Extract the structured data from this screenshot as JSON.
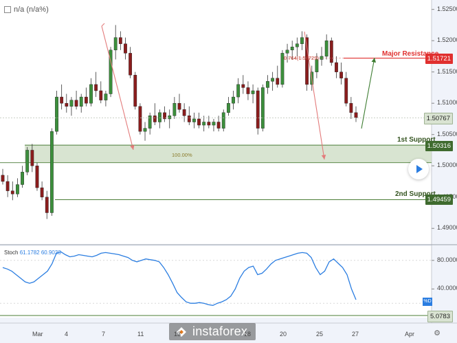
{
  "header": {
    "symbol": "n/a (n/a%)"
  },
  "chart_data": {
    "type": "candlestick",
    "price_axis": {
      "ticks": [
        "1.52500",
        "1.52000",
        "1.51500",
        "1.51000",
        "1.50500",
        "1.50000",
        "1.49500",
        "1.49000"
      ],
      "tick_values": [
        1.525,
        1.52,
        1.515,
        1.51,
        1.505,
        1.5,
        1.495,
        1.49
      ],
      "ylim": [
        1.4875,
        1.5265
      ]
    },
    "x_axis": {
      "ticks": [
        "Mar",
        "4",
        "7",
        "11",
        "13",
        "18",
        "20",
        "25",
        "27",
        "Apr"
      ]
    },
    "levels": [
      {
        "label": "Major Resistance",
        "value": 1.51721,
        "price_text": "1.51721",
        "color": "#e0302f"
      },
      {
        "label": "1st Support",
        "value": 1.50316,
        "price_text": "1.50316",
        "color": "#4a7c36"
      },
      {
        "label": "2nd Support",
        "value": 1.49459,
        "price_text": "1.49459",
        "color": "#4a7c36"
      }
    ],
    "current_price": {
      "value": 1.50767,
      "text": "1.50767"
    },
    "fib_labels": {
      "upper": "0.764(1.51729)",
      "lower": "100.00%"
    },
    "candles": [
      {
        "o": 1.4985,
        "h": 1.4995,
        "l": 1.497,
        "c": 1.4975
      },
      {
        "o": 1.4975,
        "h": 1.4985,
        "l": 1.495,
        "c": 1.496
      },
      {
        "o": 1.496,
        "h": 1.4975,
        "l": 1.4945,
        "c": 1.4955
      },
      {
        "o": 1.4955,
        "h": 1.498,
        "l": 1.495,
        "c": 1.497
      },
      {
        "o": 1.497,
        "h": 1.5,
        "l": 1.4965,
        "c": 1.499
      },
      {
        "o": 1.499,
        "h": 1.503,
        "l": 1.4985,
        "c": 1.5025
      },
      {
        "o": 1.5025,
        "h": 1.5035,
        "l": 1.499,
        "c": 1.5
      },
      {
        "o": 1.5,
        "h": 1.5005,
        "l": 1.496,
        "c": 1.4965
      },
      {
        "o": 1.4965,
        "h": 1.4975,
        "l": 1.4945,
        "c": 1.495
      },
      {
        "o": 1.495,
        "h": 1.496,
        "l": 1.4915,
        "c": 1.4925
      },
      {
        "o": 1.4925,
        "h": 1.506,
        "l": 1.492,
        "c": 1.5055
      },
      {
        "o": 1.5055,
        "h": 1.512,
        "l": 1.505,
        "c": 1.511
      },
      {
        "o": 1.511,
        "h": 1.513,
        "l": 1.509,
        "c": 1.51
      },
      {
        "o": 1.51,
        "h": 1.5115,
        "l": 1.5085,
        "c": 1.5095
      },
      {
        "o": 1.5095,
        "h": 1.511,
        "l": 1.508,
        "c": 1.5105
      },
      {
        "o": 1.5105,
        "h": 1.512,
        "l": 1.509,
        "c": 1.5095
      },
      {
        "o": 1.5095,
        "h": 1.5115,
        "l": 1.5085,
        "c": 1.511
      },
      {
        "o": 1.511,
        "h": 1.5125,
        "l": 1.5095,
        "c": 1.51
      },
      {
        "o": 1.51,
        "h": 1.514,
        "l": 1.5095,
        "c": 1.513
      },
      {
        "o": 1.513,
        "h": 1.515,
        "l": 1.511,
        "c": 1.512
      },
      {
        "o": 1.512,
        "h": 1.5135,
        "l": 1.51,
        "c": 1.5105
      },
      {
        "o": 1.5105,
        "h": 1.512,
        "l": 1.5095,
        "c": 1.5115
      },
      {
        "o": 1.5115,
        "h": 1.519,
        "l": 1.511,
        "c": 1.5185
      },
      {
        "o": 1.5185,
        "h": 1.5225,
        "l": 1.517,
        "c": 1.5205
      },
      {
        "o": 1.5205,
        "h": 1.5215,
        "l": 1.5185,
        "c": 1.5195
      },
      {
        "o": 1.5195,
        "h": 1.5205,
        "l": 1.517,
        "c": 1.518
      },
      {
        "o": 1.518,
        "h": 1.519,
        "l": 1.514,
        "c": 1.5145
      },
      {
        "o": 1.5145,
        "h": 1.515,
        "l": 1.509,
        "c": 1.5095
      },
      {
        "o": 1.5095,
        "h": 1.51,
        "l": 1.505,
        "c": 1.5055
      },
      {
        "o": 1.5055,
        "h": 1.507,
        "l": 1.504,
        "c": 1.506
      },
      {
        "o": 1.506,
        "h": 1.5085,
        "l": 1.505,
        "c": 1.508
      },
      {
        "o": 1.508,
        "h": 1.51,
        "l": 1.5065,
        "c": 1.507
      },
      {
        "o": 1.507,
        "h": 1.509,
        "l": 1.506,
        "c": 1.5085
      },
      {
        "o": 1.5085,
        "h": 1.5095,
        "l": 1.507,
        "c": 1.5075
      },
      {
        "o": 1.5075,
        "h": 1.509,
        "l": 1.506,
        "c": 1.508
      },
      {
        "o": 1.508,
        "h": 1.511,
        "l": 1.5075,
        "c": 1.51
      },
      {
        "o": 1.51,
        "h": 1.5115,
        "l": 1.5085,
        "c": 1.509
      },
      {
        "o": 1.509,
        "h": 1.51,
        "l": 1.507,
        "c": 1.508
      },
      {
        "o": 1.508,
        "h": 1.5095,
        "l": 1.5065,
        "c": 1.507
      },
      {
        "o": 1.507,
        "h": 1.5085,
        "l": 1.506,
        "c": 1.5075
      },
      {
        "o": 1.5075,
        "h": 1.5085,
        "l": 1.506,
        "c": 1.5065
      },
      {
        "o": 1.5065,
        "h": 1.508,
        "l": 1.5055,
        "c": 1.507
      },
      {
        "o": 1.507,
        "h": 1.508,
        "l": 1.506,
        "c": 1.5065
      },
      {
        "o": 1.5065,
        "h": 1.5075,
        "l": 1.5055,
        "c": 1.507
      },
      {
        "o": 1.507,
        "h": 1.508,
        "l": 1.5055,
        "c": 1.506
      },
      {
        "o": 1.506,
        "h": 1.509,
        "l": 1.5055,
        "c": 1.5085
      },
      {
        "o": 1.5085,
        "h": 1.511,
        "l": 1.508,
        "c": 1.51
      },
      {
        "o": 1.51,
        "h": 1.512,
        "l": 1.509,
        "c": 1.511
      },
      {
        "o": 1.511,
        "h": 1.514,
        "l": 1.51,
        "c": 1.513
      },
      {
        "o": 1.513,
        "h": 1.5145,
        "l": 1.5115,
        "c": 1.5125
      },
      {
        "o": 1.5125,
        "h": 1.5135,
        "l": 1.5105,
        "c": 1.5115
      },
      {
        "o": 1.5115,
        "h": 1.513,
        "l": 1.51,
        "c": 1.512
      },
      {
        "o": 1.512,
        "h": 1.5125,
        "l": 1.505,
        "c": 1.506
      },
      {
        "o": 1.506,
        "h": 1.513,
        "l": 1.5055,
        "c": 1.5125
      },
      {
        "o": 1.5125,
        "h": 1.5145,
        "l": 1.5115,
        "c": 1.5135
      },
      {
        "o": 1.5135,
        "h": 1.515,
        "l": 1.512,
        "c": 1.514
      },
      {
        "o": 1.514,
        "h": 1.516,
        "l": 1.5125,
        "c": 1.513
      },
      {
        "o": 1.513,
        "h": 1.5185,
        "l": 1.5125,
        "c": 1.518
      },
      {
        "o": 1.518,
        "h": 1.5195,
        "l": 1.5165,
        "c": 1.5185
      },
      {
        "o": 1.5185,
        "h": 1.52,
        "l": 1.517,
        "c": 1.519
      },
      {
        "o": 1.519,
        "h": 1.5205,
        "l": 1.5175,
        "c": 1.5195
      },
      {
        "o": 1.5195,
        "h": 1.5215,
        "l": 1.5185,
        "c": 1.5205
      },
      {
        "o": 1.5205,
        "h": 1.521,
        "l": 1.512,
        "c": 1.513
      },
      {
        "o": 1.513,
        "h": 1.516,
        "l": 1.512,
        "c": 1.515
      },
      {
        "o": 1.515,
        "h": 1.518,
        "l": 1.514,
        "c": 1.517
      },
      {
        "o": 1.517,
        "h": 1.519,
        "l": 1.516,
        "c": 1.5175
      },
      {
        "o": 1.5175,
        "h": 1.521,
        "l": 1.517,
        "c": 1.52
      },
      {
        "o": 1.52,
        "h": 1.5205,
        "l": 1.516,
        "c": 1.5165
      },
      {
        "o": 1.5165,
        "h": 1.5175,
        "l": 1.514,
        "c": 1.515
      },
      {
        "o": 1.515,
        "h": 1.5165,
        "l": 1.513,
        "c": 1.514
      },
      {
        "o": 1.514,
        "h": 1.515,
        "l": 1.5095,
        "c": 1.51
      },
      {
        "o": 1.51,
        "h": 1.511,
        "l": 1.5075,
        "c": 1.5085
      },
      {
        "o": 1.5085,
        "h": 1.5095,
        "l": 1.507,
        "c": 1.5077
      }
    ],
    "stochastic": {
      "label": "Stoch",
      "k_text": "61.1782",
      "d_text": "60.9038",
      "axis_ticks": [
        "80.0000",
        "40.0000"
      ],
      "axis_values": [
        80,
        40
      ],
      "ylim": [
        0,
        100
      ],
      "current_text": "5.0783",
      "pct_label": "%D",
      "values": [
        70,
        68,
        65,
        60,
        55,
        50,
        48,
        50,
        55,
        60,
        65,
        75,
        90,
        92,
        88,
        85,
        86,
        88,
        87,
        86,
        85,
        87,
        90,
        91,
        90,
        89,
        88,
        86,
        84,
        80,
        78,
        80,
        82,
        81,
        80,
        78,
        70,
        60,
        48,
        35,
        28,
        22,
        20,
        20,
        21,
        20,
        18,
        17,
        20,
        22,
        25,
        30,
        40,
        55,
        65,
        70,
        72,
        60,
        62,
        68,
        75,
        80,
        82,
        84,
        86,
        88,
        90,
        91,
        90,
        84,
        70,
        60,
        65,
        78,
        82,
        76,
        70,
        60,
        40,
        25
      ]
    }
  },
  "logo": {
    "text": "instaforex"
  }
}
